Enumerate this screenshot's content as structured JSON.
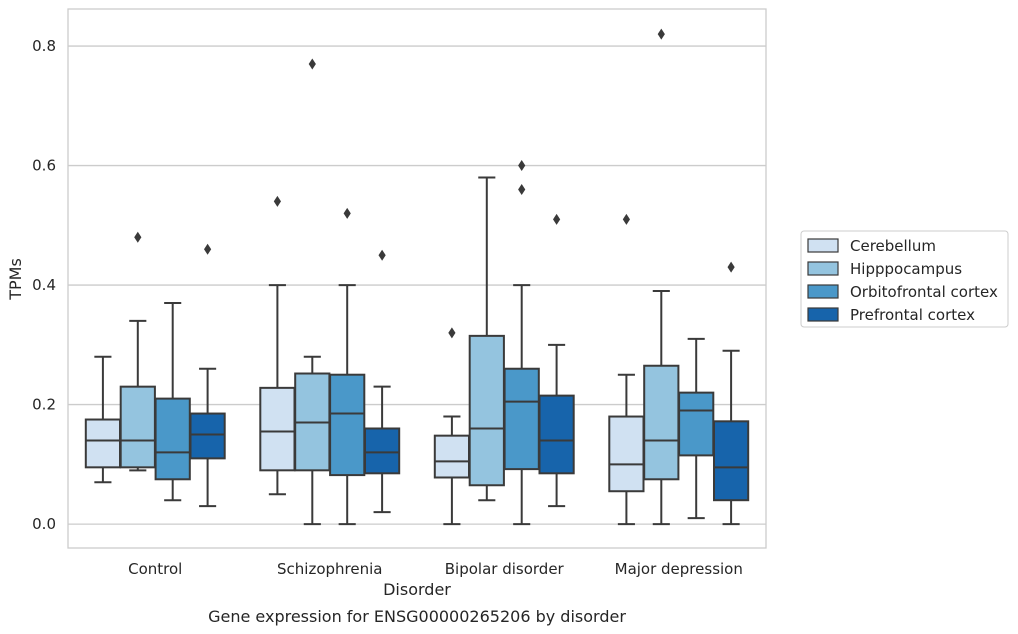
{
  "chart_data": {
    "type": "box",
    "title": "",
    "caption": "Gene expression for ENSG00000265206 by disorder",
    "xlabel": "Disorder",
    "ylabel": "TPMs",
    "ylim": [
      -0.04,
      0.862
    ],
    "yticks": [
      0.0,
      0.2,
      0.4,
      0.6,
      0.8
    ],
    "ytick_labels": [
      "0.0",
      "0.2",
      "0.4",
      "0.6",
      "0.8"
    ],
    "grid": "horizontal",
    "legend_position": "right",
    "categories": [
      "Control",
      "Schizophrenia",
      "Bipolar disorder",
      "Major depression"
    ],
    "series": [
      {
        "name": "Cerebellum",
        "color": "#d0e1f2",
        "boxes": [
          {
            "whisker_low": 0.07,
            "q1": 0.095,
            "median": 0.14,
            "q3": 0.175,
            "whisker_high": 0.28,
            "outliers": []
          },
          {
            "whisker_low": 0.05,
            "q1": 0.09,
            "median": 0.155,
            "q3": 0.228,
            "whisker_high": 0.4,
            "outliers": [
              0.54
            ]
          },
          {
            "whisker_low": 0.0,
            "q1": 0.078,
            "median": 0.105,
            "q3": 0.148,
            "whisker_high": 0.18,
            "outliers": [
              0.32
            ]
          },
          {
            "whisker_low": 0.0,
            "q1": 0.055,
            "median": 0.1,
            "q3": 0.18,
            "whisker_high": 0.25,
            "outliers": [
              0.51
            ]
          }
        ]
      },
      {
        "name": "Hipppocampus",
        "color": "#94c4df",
        "boxes": [
          {
            "whisker_low": 0.09,
            "q1": 0.095,
            "median": 0.14,
            "q3": 0.23,
            "whisker_high": 0.34,
            "outliers": [
              0.48
            ]
          },
          {
            "whisker_low": 0.0,
            "q1": 0.09,
            "median": 0.17,
            "q3": 0.252,
            "whisker_high": 0.28,
            "outliers": [
              0.77
            ]
          },
          {
            "whisker_low": 0.04,
            "q1": 0.065,
            "median": 0.16,
            "q3": 0.315,
            "whisker_high": 0.58,
            "outliers": []
          },
          {
            "whisker_low": 0.0,
            "q1": 0.075,
            "median": 0.14,
            "q3": 0.265,
            "whisker_high": 0.39,
            "outliers": [
              0.82
            ]
          }
        ]
      },
      {
        "name": "Orbitofrontal cortex",
        "color": "#4a98c9",
        "boxes": [
          {
            "whisker_low": 0.04,
            "q1": 0.075,
            "median": 0.12,
            "q3": 0.21,
            "whisker_high": 0.37,
            "outliers": []
          },
          {
            "whisker_low": 0.0,
            "q1": 0.082,
            "median": 0.185,
            "q3": 0.25,
            "whisker_high": 0.4,
            "outliers": [
              0.52
            ]
          },
          {
            "whisker_low": 0.0,
            "q1": 0.092,
            "median": 0.205,
            "q3": 0.26,
            "whisker_high": 0.4,
            "outliers": [
              0.56,
              0.6
            ]
          },
          {
            "whisker_low": 0.01,
            "q1": 0.115,
            "median": 0.19,
            "q3": 0.22,
            "whisker_high": 0.31,
            "outliers": []
          }
        ]
      },
      {
        "name": "Prefrontal cortex",
        "color": "#1764ab",
        "boxes": [
          {
            "whisker_low": 0.03,
            "q1": 0.11,
            "median": 0.15,
            "q3": 0.185,
            "whisker_high": 0.26,
            "outliers": [
              0.46
            ]
          },
          {
            "whisker_low": 0.02,
            "q1": 0.085,
            "median": 0.12,
            "q3": 0.16,
            "whisker_high": 0.23,
            "outliers": [
              0.45
            ]
          },
          {
            "whisker_low": 0.03,
            "q1": 0.085,
            "median": 0.14,
            "q3": 0.215,
            "whisker_high": 0.3,
            "outliers": [
              0.51
            ]
          },
          {
            "whisker_low": 0.0,
            "q1": 0.04,
            "median": 0.095,
            "q3": 0.172,
            "whisker_high": 0.29,
            "outliers": [
              0.43
            ]
          }
        ]
      }
    ]
  }
}
